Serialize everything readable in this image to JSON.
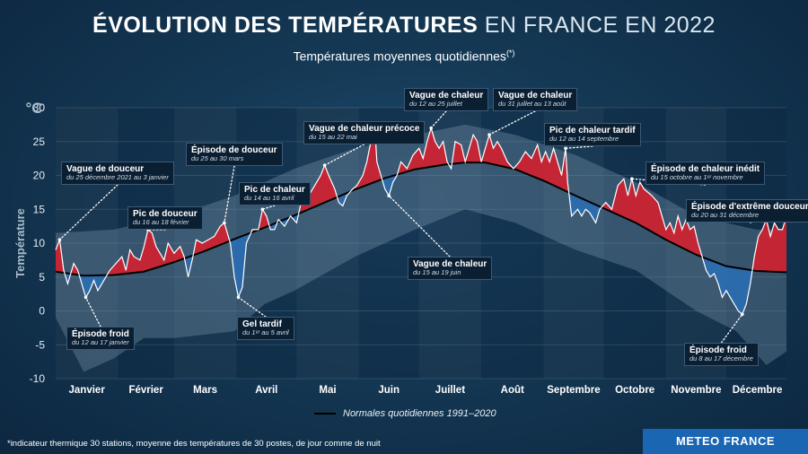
{
  "header": {
    "title_bold": "ÉVOLUTION DES TEMPÉRATURES",
    "title_light": "EN FRANCE EN 2022",
    "subtitle": "Températures moyennes quotidiennes",
    "subtitle_sup": "(*)"
  },
  "chart_data": {
    "type": "area",
    "unit_label": "°C",
    "ylabel": "Température",
    "ylim": [
      -10,
      30
    ],
    "yticks": [
      -10,
      -5,
      0,
      5,
      10,
      15,
      20,
      25,
      30
    ],
    "months": [
      "Janvier",
      "Février",
      "Mars",
      "Avril",
      "Mai",
      "Juin",
      "Juillet",
      "Août",
      "Septembre",
      "Octobre",
      "Novembre",
      "Décembre"
    ],
    "x_domain_days": [
      1,
      365
    ],
    "series": [
      {
        "name": "Températures moyennes quotidiennes",
        "points": [
          [
            1,
            9
          ],
          [
            3,
            10.5
          ],
          [
            5,
            6
          ],
          [
            7,
            4
          ],
          [
            9,
            6
          ],
          [
            10,
            7
          ],
          [
            12,
            6
          ],
          [
            14,
            4
          ],
          [
            16,
            2
          ],
          [
            18,
            3
          ],
          [
            20,
            4.5
          ],
          [
            22,
            3
          ],
          [
            25,
            4.5
          ],
          [
            28,
            6
          ],
          [
            31,
            7
          ],
          [
            34,
            8
          ],
          [
            36,
            6
          ],
          [
            38,
            9
          ],
          [
            40,
            8
          ],
          [
            43,
            7.5
          ],
          [
            45,
            9.5
          ],
          [
            47,
            12
          ],
          [
            49,
            11.5
          ],
          [
            51,
            9.5
          ],
          [
            53,
            8.5
          ],
          [
            55,
            7.5
          ],
          [
            57,
            10
          ],
          [
            60,
            8.5
          ],
          [
            63,
            9.5
          ],
          [
            65,
            8
          ],
          [
            67,
            5
          ],
          [
            69,
            7.5
          ],
          [
            71,
            10.5
          ],
          [
            74,
            10
          ],
          [
            77,
            10.5
          ],
          [
            80,
            11
          ],
          [
            83,
            12.5
          ],
          [
            85,
            13
          ],
          [
            88,
            10
          ],
          [
            90,
            5
          ],
          [
            92,
            2
          ],
          [
            94,
            3.5
          ],
          [
            96,
            10
          ],
          [
            99,
            12
          ],
          [
            102,
            12
          ],
          [
            104,
            15
          ],
          [
            106,
            14
          ],
          [
            108,
            12
          ],
          [
            110,
            12
          ],
          [
            112,
            13.5
          ],
          [
            115,
            12.5
          ],
          [
            118,
            14
          ],
          [
            121,
            13
          ],
          [
            124,
            17
          ],
          [
            127,
            17
          ],
          [
            130,
            18.5
          ],
          [
            133,
            20
          ],
          [
            135,
            21.5
          ],
          [
            137,
            20
          ],
          [
            140,
            18
          ],
          [
            142,
            16
          ],
          [
            144,
            15.5
          ],
          [
            146,
            17
          ],
          [
            149,
            18
          ],
          [
            151,
            18.5
          ],
          [
            154,
            20
          ],
          [
            156,
            22
          ],
          [
            158,
            25
          ],
          [
            160,
            27
          ],
          [
            161,
            22
          ],
          [
            163,
            20
          ],
          [
            165,
            18
          ],
          [
            167,
            17
          ],
          [
            169,
            19
          ],
          [
            171,
            20
          ],
          [
            173,
            22
          ],
          [
            176,
            21
          ],
          [
            179,
            23
          ],
          [
            182,
            24
          ],
          [
            184,
            22.5
          ],
          [
            186,
            25
          ],
          [
            188,
            27
          ],
          [
            190,
            25
          ],
          [
            192,
            24
          ],
          [
            194,
            25
          ],
          [
            196,
            22
          ],
          [
            198,
            21
          ],
          [
            200,
            25
          ],
          [
            203,
            24.5
          ],
          [
            205,
            22
          ],
          [
            207,
            24
          ],
          [
            209,
            26
          ],
          [
            211,
            25
          ],
          [
            213,
            22
          ],
          [
            215,
            24
          ],
          [
            217,
            26
          ],
          [
            219,
            24
          ],
          [
            221,
            25
          ],
          [
            223,
            24
          ],
          [
            226,
            22
          ],
          [
            229,
            21
          ],
          [
            232,
            22
          ],
          [
            235,
            23.5
          ],
          [
            238,
            22.5
          ],
          [
            241,
            24.5
          ],
          [
            243,
            22
          ],
          [
            245,
            23.5
          ],
          [
            247,
            22
          ],
          [
            249,
            24
          ],
          [
            251,
            22
          ],
          [
            253,
            20
          ],
          [
            255,
            24
          ],
          [
            256,
            19
          ],
          [
            258,
            14
          ],
          [
            261,
            15
          ],
          [
            263,
            14
          ],
          [
            265,
            15
          ],
          [
            267,
            14.5
          ],
          [
            270,
            13
          ],
          [
            272,
            15
          ],
          [
            275,
            16
          ],
          [
            278,
            15
          ],
          [
            281,
            18.5
          ],
          [
            284,
            19.5
          ],
          [
            286,
            17
          ],
          [
            288,
            19.5
          ],
          [
            290,
            17
          ],
          [
            292,
            19
          ],
          [
            294,
            18
          ],
          [
            296,
            17.5
          ],
          [
            298,
            17
          ],
          [
            301,
            16
          ],
          [
            303,
            14
          ],
          [
            305,
            12
          ],
          [
            307,
            13
          ],
          [
            309,
            11.5
          ],
          [
            311,
            14
          ],
          [
            313,
            12
          ],
          [
            315,
            13.5
          ],
          [
            317,
            12
          ],
          [
            319,
            12.5
          ],
          [
            321,
            10
          ],
          [
            323,
            8
          ],
          [
            325,
            6
          ],
          [
            327,
            5
          ],
          [
            329,
            5.5
          ],
          [
            331,
            4
          ],
          [
            333,
            2
          ],
          [
            335,
            3
          ],
          [
            337,
            2
          ],
          [
            339,
            1
          ],
          [
            341,
            0
          ],
          [
            343,
            -0.5
          ],
          [
            345,
            1
          ],
          [
            347,
            4
          ],
          [
            349,
            8
          ],
          [
            351,
            11
          ],
          [
            353,
            12
          ],
          [
            355,
            13.5
          ],
          [
            357,
            11
          ],
          [
            359,
            13
          ],
          [
            361,
            12
          ],
          [
            363,
            12
          ],
          [
            365,
            14
          ]
        ]
      },
      {
        "name": "Normales quotidiennes 1991–2020",
        "points": [
          [
            1,
            5.8
          ],
          [
            15,
            5.2
          ],
          [
            30,
            5.3
          ],
          [
            45,
            5.8
          ],
          [
            60,
            7.2
          ],
          [
            75,
            8.8
          ],
          [
            90,
            10.6
          ],
          [
            105,
            12.3
          ],
          [
            120,
            14.1
          ],
          [
            135,
            16
          ],
          [
            150,
            17.9
          ],
          [
            165,
            19.6
          ],
          [
            180,
            20.9
          ],
          [
            195,
            21.6
          ],
          [
            205,
            21.9
          ],
          [
            215,
            21.9
          ],
          [
            230,
            20.9
          ],
          [
            245,
            19.1
          ],
          [
            260,
            17
          ],
          [
            275,
            15
          ],
          [
            290,
            13
          ],
          [
            305,
            10.5
          ],
          [
            320,
            8.3
          ],
          [
            335,
            6.6
          ],
          [
            350,
            5.9
          ],
          [
            365,
            5.7
          ]
        ]
      }
    ],
    "range_upper": [
      [
        1,
        11.5
      ],
      [
        30,
        12
      ],
      [
        60,
        14
      ],
      [
        90,
        17
      ],
      [
        120,
        21
      ],
      [
        150,
        24
      ],
      [
        180,
        26
      ],
      [
        205,
        27.5
      ],
      [
        230,
        26
      ],
      [
        260,
        23
      ],
      [
        290,
        19
      ],
      [
        320,
        14
      ],
      [
        350,
        12
      ],
      [
        365,
        12
      ]
    ],
    "range_lower": [
      [
        1,
        -1
      ],
      [
        15,
        -9
      ],
      [
        30,
        -7
      ],
      [
        45,
        -4
      ],
      [
        60,
        -4
      ],
      [
        90,
        -3
      ],
      [
        105,
        1
      ],
      [
        120,
        3
      ],
      [
        150,
        8
      ],
      [
        180,
        12
      ],
      [
        205,
        15
      ],
      [
        230,
        13
      ],
      [
        260,
        9
      ],
      [
        290,
        6
      ],
      [
        320,
        0
      ],
      [
        340,
        -3
      ],
      [
        355,
        -8
      ],
      [
        365,
        -6
      ]
    ],
    "colors": {
      "above_normal": "#d3202f",
      "below_normal": "#2a6db3",
      "normal_line": "#000000",
      "observed_line": "#ffffff",
      "range_band": "#7f9cb2"
    },
    "annotations": [
      {
        "title": "Vague de douceur",
        "date": "du 25 décembre 2021 au 3 janvier",
        "day": 3,
        "temp": 10.5
      },
      {
        "title": "Épisode froid",
        "date": "du 12 au 17 janvier",
        "day": 16,
        "temp": 2
      },
      {
        "title": "Pic de douceur",
        "date": "du 16 au 18 février",
        "day": 47,
        "temp": 12
      },
      {
        "title": "Épisode de douceur",
        "date": "du 25 au 30 mars",
        "day": 85,
        "temp": 13
      },
      {
        "title": "Gel tardif",
        "date": "du 1ᵉʳ au 5 avril",
        "day": 92,
        "temp": 2
      },
      {
        "title": "Pic de chaleur",
        "date": "du 14 au 16 avril",
        "day": 104,
        "temp": 15
      },
      {
        "title": "Vague de chaleur précoce",
        "date": "du 15 au 22 mai",
        "day": 135,
        "temp": 21.5
      },
      {
        "title": "Vague de chaleur",
        "date": "du 15 au 19 juin",
        "day": 167,
        "temp": 17
      },
      {
        "title": "Vague de chaleur",
        "date": "du 12 au 25 juillet",
        "day": 188,
        "temp": 27
      },
      {
        "title": "Vague de chaleur",
        "date": "du 31 juillet au 13 août",
        "day": 217,
        "temp": 26
      },
      {
        "title": "Pic de chaleur tardif",
        "date": "du 12 au 14 septembre",
        "day": 255,
        "temp": 24
      },
      {
        "title": "Épisode de chaleur inédit",
        "date": "du 15 octobre au 1ᵉʳ novembre",
        "day": 288,
        "temp": 19.5
      },
      {
        "title": "Épisode d'extrême douceur",
        "date": "du 20 au 31 décembre",
        "day": 355,
        "temp": 13.5
      },
      {
        "title": "Épisode froid",
        "date": "du 8 au 17 décembre",
        "day": 343,
        "temp": -0.5
      }
    ]
  },
  "legend": {
    "normal_label": "Normales quotidiennes 1991–2020"
  },
  "footer": {
    "footnote": "*indicateur thermique 30 stations, moyenne des températures de 30 postes, de jour comme de nuit",
    "brand": "METEO FRANCE"
  }
}
